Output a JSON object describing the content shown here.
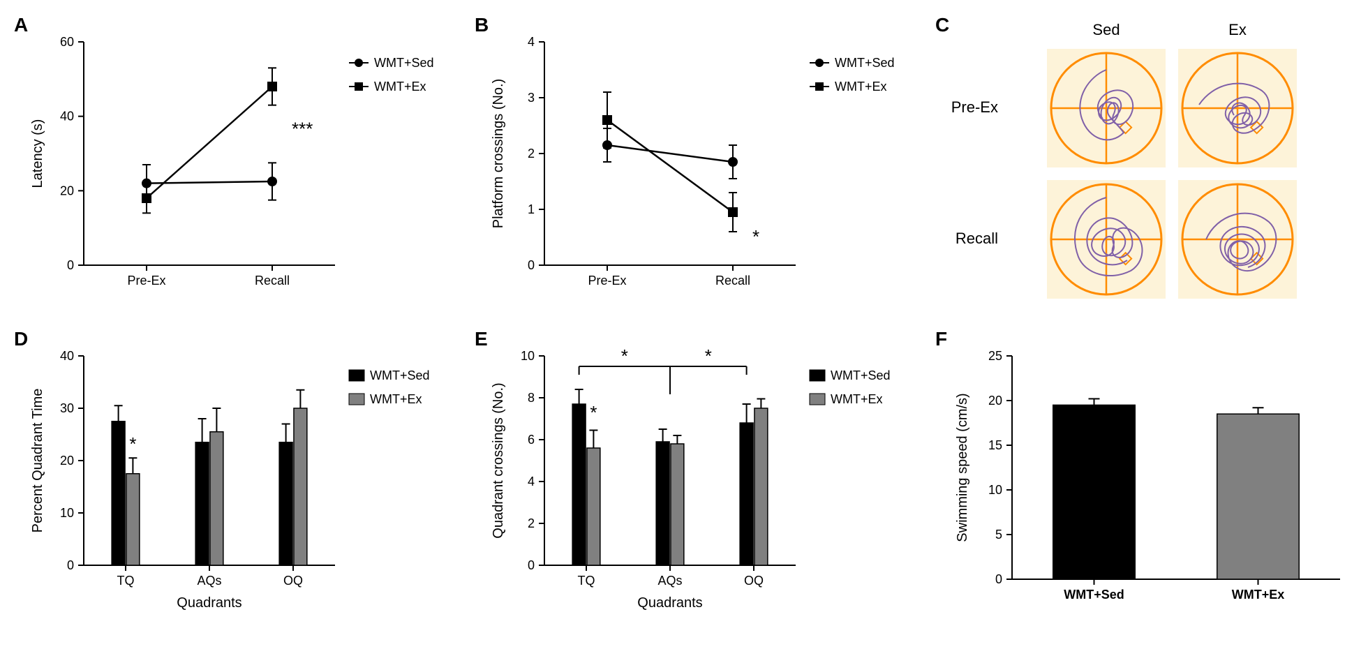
{
  "colors": {
    "black": "#000000",
    "gray": "#808080",
    "orange": "#ff8c00",
    "purple_trace": "#8060a8",
    "cream_bg": "#fdf3d9",
    "white": "#ffffff"
  },
  "font_family": "Arial",
  "panelA": {
    "label": "A",
    "type": "line-scatter",
    "ylabel": "Latency (s)",
    "xcats": [
      "Pre-Ex",
      "Recall"
    ],
    "ylim": [
      0,
      60
    ],
    "ytick_step": 20,
    "legend_names": [
      "WMT+Sed",
      "WMT+Ex"
    ],
    "markers": [
      "circle",
      "square"
    ],
    "series": {
      "WMT+Sed": {
        "y": [
          22,
          22.5
        ],
        "err": [
          5,
          5
        ]
      },
      "WMT+Ex": {
        "y": [
          18,
          48
        ],
        "err": [
          4,
          5
        ]
      }
    },
    "significance": {
      "text": "***",
      "x_cat": "Recall",
      "y": 35
    }
  },
  "panelB": {
    "label": "B",
    "type": "line-scatter",
    "ylabel": "Platform crossings (No.)",
    "xcats": [
      "Pre-Ex",
      "Recall"
    ],
    "ylim": [
      0,
      4
    ],
    "ytick_step": 1,
    "legend_names": [
      "WMT+Sed",
      "WMT+Ex"
    ],
    "markers": [
      "circle",
      "square"
    ],
    "series": {
      "WMT+Sed": {
        "y": [
          2.15,
          1.85
        ],
        "err": [
          0.3,
          0.3
        ]
      },
      "WMT+Ex": {
        "y": [
          2.6,
          0.95
        ],
        "err": [
          0.5,
          0.35
        ]
      }
    },
    "significance": {
      "text": "*",
      "x_cat": "Recall",
      "y": 0.4
    }
  },
  "panelC": {
    "label": "C",
    "col_headers": [
      "Sed",
      "Ex"
    ],
    "row_headers": [
      "Pre-Ex",
      "Recall"
    ],
    "circle_color": "#ff8c00",
    "trace_color": "#8060a8",
    "bg_color": "#fdf3d9"
  },
  "panelD": {
    "label": "D",
    "type": "grouped-bar",
    "xlabel": "Quadrants",
    "ylabel": "Percent Quadrant Time",
    "xcats": [
      "TQ",
      "AQs",
      "OQ"
    ],
    "ylim": [
      0,
      40
    ],
    "ytick_step": 10,
    "legend_names": [
      "WMT+Sed",
      "WMT+Ex"
    ],
    "legend_markers": [
      "square-fill-black",
      "square-fill-gray"
    ],
    "bar_colors": [
      "#000000",
      "#808080"
    ],
    "bar_width": 0.35,
    "series": {
      "WMT+Sed": {
        "y": [
          27.5,
          23.5,
          23.5
        ],
        "err": [
          3,
          4.5,
          3.5
        ]
      },
      "WMT+Ex": {
        "y": [
          17.5,
          25.5,
          30
        ],
        "err": [
          3,
          4.5,
          3.5
        ]
      }
    },
    "significance": [
      {
        "text": "*",
        "x_cat": "TQ",
        "group": "WMT+Ex",
        "y": 22
      }
    ]
  },
  "panelE": {
    "label": "E",
    "type": "grouped-bar",
    "xlabel": "Quadrants",
    "ylabel": "Quadrant crossings (No.)",
    "xcats": [
      "TQ",
      "AQs",
      "OQ"
    ],
    "ylim": [
      0,
      10
    ],
    "ytick_step": 2,
    "legend_names": [
      "WMT+Sed",
      "WMT+Ex"
    ],
    "legend_markers": [
      "square-fill-black",
      "square-fill-gray"
    ],
    "bar_colors": [
      "#000000",
      "#808080"
    ],
    "bar_width": 0.35,
    "series": {
      "WMT+Sed": {
        "y": [
          7.7,
          5.9,
          6.8
        ],
        "err": [
          0.7,
          0.6,
          0.9
        ]
      },
      "WMT+Ex": {
        "y": [
          5.6,
          5.8,
          7.5
        ],
        "err": [
          0.85,
          0.4,
          0.45
        ]
      }
    },
    "significance_bars": [
      {
        "from_cat": "TQ",
        "from_group": "WMT+Sed",
        "to_cat": "AQs",
        "to_group": "mid",
        "text": "*",
        "y": 9.5
      },
      {
        "to_cat": "OQ",
        "to_group": "WMT+Sed",
        "text": "*",
        "y": 9.5
      }
    ],
    "significance": [
      {
        "text": "*",
        "x_cat": "TQ",
        "group": "WMT+Ex",
        "y": 7.0
      }
    ]
  },
  "panelF": {
    "label": "F",
    "type": "bar",
    "ylabel": "Swimming speed (cm/s)",
    "xcats": [
      "WMT+Sed",
      "WMT+Ex"
    ],
    "ylim": [
      0,
      25
    ],
    "ytick_step": 5,
    "bar_colors": [
      "#000000",
      "#808080"
    ],
    "bar_width": 0.5,
    "series": {
      "y": [
        19.5,
        18.5
      ],
      "err": [
        0.7,
        0.7
      ]
    }
  }
}
